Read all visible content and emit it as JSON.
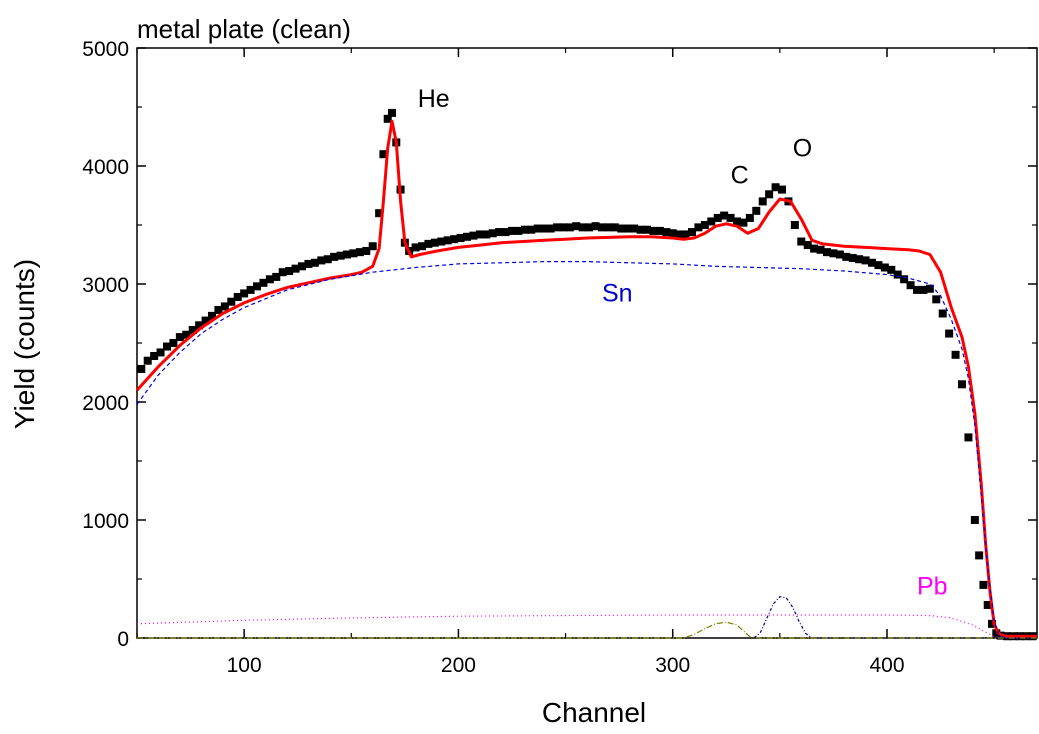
{
  "chart_data": {
    "type": "scatter",
    "title": "metal plate (clean)",
    "xlabel": "Channel",
    "ylabel": "Yield (counts)",
    "xlim": [
      50,
      470
    ],
    "ylim": [
      0,
      5000
    ],
    "xticks": [
      100,
      200,
      300,
      400
    ],
    "yticks": [
      0,
      1000,
      2000,
      3000,
      4000,
      5000
    ],
    "grid": false,
    "legend": "none",
    "annotations": [
      {
        "text": "He",
        "x": 181,
        "y": 4500,
        "color": "#000000"
      },
      {
        "text": "C",
        "x": 327,
        "y": 3850,
        "color": "#000000"
      },
      {
        "text": "O",
        "x": 356,
        "y": 4080,
        "color": "#000000"
      },
      {
        "text": "Sn",
        "x": 267,
        "y": 2850,
        "color": "#0000cc"
      },
      {
        "text": "Pb",
        "x": 414,
        "y": 370,
        "color": "#ff00ff"
      }
    ],
    "series": [
      {
        "kind": "points",
        "color": "#000000",
        "x": [
          52,
          55,
          58,
          61,
          64,
          67,
          70,
          73,
          76,
          79,
          82,
          85,
          88,
          91,
          94,
          97,
          100,
          103,
          106,
          109,
          112,
          115,
          118,
          121,
          124,
          127,
          130,
          133,
          136,
          139,
          142,
          145,
          148,
          151,
          154,
          157,
          160,
          163,
          165,
          167,
          169,
          171,
          173,
          175,
          177,
          180,
          183,
          186,
          189,
          192,
          195,
          198,
          201,
          204,
          207,
          210,
          213,
          216,
          219,
          222,
          225,
          228,
          231,
          234,
          237,
          240,
          243,
          246,
          249,
          252,
          255,
          258,
          261,
          264,
          267,
          270,
          273,
          276,
          279,
          282,
          285,
          288,
          291,
          294,
          297,
          300,
          303,
          306,
          309,
          312,
          315,
          318,
          321,
          324,
          327,
          330,
          333,
          336,
          339,
          342,
          345,
          348,
          351,
          354,
          357,
          360,
          363,
          366,
          369,
          372,
          375,
          378,
          381,
          384,
          387,
          390,
          393,
          396,
          399,
          402,
          405,
          408,
          411,
          414,
          417,
          420,
          423,
          426,
          429,
          432,
          435,
          438,
          441,
          443,
          445,
          447,
          449,
          451,
          453,
          456,
          459,
          462,
          465,
          468
        ],
        "y": [
          2280,
          2350,
          2390,
          2420,
          2470,
          2500,
          2550,
          2570,
          2610,
          2650,
          2690,
          2730,
          2780,
          2810,
          2850,
          2890,
          2920,
          2950,
          2980,
          3010,
          3040,
          3060,
          3100,
          3110,
          3130,
          3150,
          3170,
          3180,
          3200,
          3210,
          3230,
          3240,
          3250,
          3260,
          3270,
          3280,
          3320,
          3600,
          4100,
          4400,
          4450,
          4200,
          3800,
          3350,
          3280,
          3310,
          3320,
          3340,
          3350,
          3360,
          3370,
          3380,
          3390,
          3400,
          3410,
          3420,
          3420,
          3430,
          3440,
          3440,
          3450,
          3450,
          3460,
          3460,
          3470,
          3470,
          3470,
          3480,
          3480,
          3480,
          3490,
          3480,
          3480,
          3490,
          3480,
          3480,
          3480,
          3470,
          3470,
          3470,
          3460,
          3460,
          3450,
          3450,
          3440,
          3430,
          3420,
          3420,
          3440,
          3480,
          3500,
          3530,
          3560,
          3580,
          3560,
          3530,
          3520,
          3560,
          3620,
          3700,
          3760,
          3820,
          3800,
          3700,
          3500,
          3360,
          3330,
          3300,
          3290,
          3270,
          3260,
          3250,
          3230,
          3220,
          3210,
          3200,
          3180,
          3160,
          3140,
          3120,
          3080,
          3040,
          2990,
          2950,
          2950,
          2960,
          2870,
          2750,
          2580,
          2400,
          2150,
          1700,
          1000,
          700,
          450,
          280,
          120,
          40,
          20,
          15,
          15,
          15,
          15,
          15
        ]
      },
      {
        "kind": "line",
        "color": "#ff0000",
        "x": [
          50,
          60,
          70,
          80,
          90,
          100,
          110,
          120,
          130,
          140,
          150,
          155,
          160,
          163,
          165,
          167,
          169,
          171,
          173,
          175,
          178,
          182,
          190,
          200,
          210,
          220,
          230,
          240,
          250,
          260,
          270,
          280,
          290,
          300,
          305,
          310,
          315,
          320,
          325,
          330,
          335,
          340,
          345,
          350,
          355,
          360,
          365,
          370,
          380,
          390,
          400,
          410,
          415,
          420,
          425,
          430,
          435,
          438,
          441,
          444,
          446,
          448,
          450,
          452,
          455,
          460,
          470
        ],
        "y": [
          2100,
          2300,
          2480,
          2630,
          2750,
          2840,
          2910,
          2970,
          3010,
          3050,
          3080,
          3100,
          3150,
          3300,
          3700,
          4150,
          4380,
          4200,
          3700,
          3350,
          3230,
          3250,
          3280,
          3310,
          3330,
          3350,
          3360,
          3370,
          3380,
          3390,
          3395,
          3400,
          3400,
          3390,
          3380,
          3390,
          3430,
          3490,
          3510,
          3490,
          3430,
          3470,
          3610,
          3720,
          3700,
          3550,
          3370,
          3340,
          3320,
          3310,
          3300,
          3290,
          3280,
          3250,
          3100,
          2800,
          2550,
          2300,
          1900,
          1300,
          800,
          400,
          120,
          40,
          15,
          15,
          15
        ]
      },
      {
        "kind": "line",
        "dash": "4,3",
        "color": "#0000dd",
        "x": [
          50,
          60,
          70,
          80,
          90,
          100,
          120,
          140,
          160,
          180,
          200,
          220,
          240,
          260,
          280,
          300,
          320,
          340,
          360,
          380,
          400,
          410,
          420,
          425,
          430,
          435,
          438,
          441,
          444,
          447,
          450,
          452,
          455,
          460,
          470
        ],
        "y": [
          1980,
          2230,
          2420,
          2580,
          2700,
          2800,
          2950,
          3040,
          3100,
          3140,
          3170,
          3180,
          3190,
          3190,
          3180,
          3170,
          3150,
          3140,
          3130,
          3110,
          3080,
          3050,
          3000,
          2900,
          2700,
          2450,
          2200,
          1800,
          1200,
          600,
          150,
          30,
          0,
          0,
          0
        ]
      },
      {
        "kind": "line",
        "dash": "1,3",
        "color": "#ff00ff",
        "x": [
          50,
          100,
          150,
          200,
          250,
          300,
          350,
          400,
          420,
          430,
          440,
          445,
          450,
          455,
          470
        ],
        "y": [
          120,
          150,
          170,
          185,
          190,
          195,
          195,
          195,
          190,
          170,
          110,
          60,
          10,
          0,
          0
        ]
      },
      {
        "kind": "line",
        "dash": "3,2,1,2",
        "color": "#000080",
        "x": [
          338,
          341,
          344,
          347,
          350,
          353,
          356,
          359,
          362,
          365,
          370,
          470
        ],
        "y": [
          0,
          50,
          170,
          290,
          350,
          340,
          260,
          140,
          40,
          0,
          0,
          0
        ]
      },
      {
        "kind": "line",
        "dash": "6,2,1,2",
        "color": "#808000",
        "x": [
          50,
          305,
          310,
          315,
          320,
          325,
          330,
          333,
          336,
          340,
          470
        ],
        "y": [
          0,
          0,
          30,
          80,
          120,
          135,
          110,
          60,
          10,
          0,
          0
        ]
      }
    ]
  }
}
